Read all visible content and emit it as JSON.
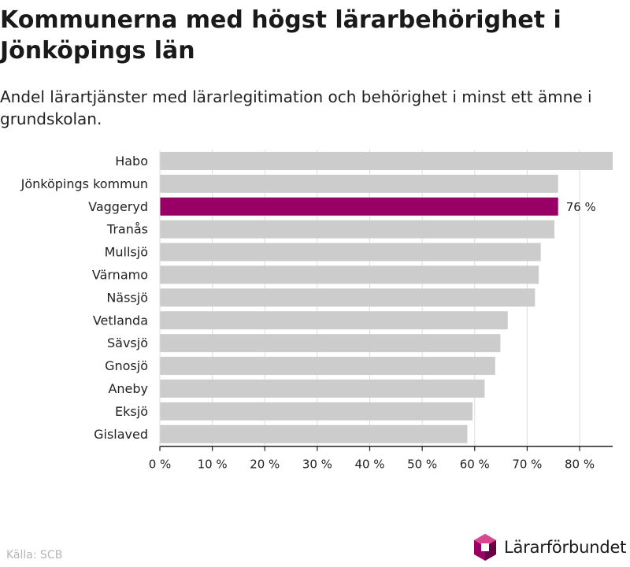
{
  "title": "Kommunerna med högst lärarbehörighet i Jönköpings län",
  "subtitle": "Andel lärartjänster med lärarlegitimation och behörighet i minst ett ämne i grundskolan.",
  "source": "Källa: SCB",
  "brand": {
    "name": "Lärarförbundet"
  },
  "colors": {
    "bar": "#cccccc",
    "highlight": "#990066",
    "grid": "#dddddd",
    "axis": "#222222"
  },
  "chart_data": {
    "type": "bar",
    "orientation": "horizontal",
    "categories": [
      "Habo",
      "Jönköpings kommun",
      "Vaggeryd",
      "Tranås",
      "Mullsjö",
      "Värnamo",
      "Nässjö",
      "Vetlanda",
      "Sävsjö",
      "Gnosjö",
      "Aneby",
      "Eksjö",
      "Gislaved"
    ],
    "values": [
      86.3,
      75.9,
      75.9,
      75.2,
      72.6,
      72.2,
      71.5,
      66.3,
      64.9,
      63.9,
      61.9,
      59.6,
      58.6
    ],
    "highlight": "Vaggeryd",
    "highlight_label": "76 %",
    "xlim": [
      0,
      86.3
    ],
    "xticks": [
      0,
      10,
      20,
      30,
      40,
      50,
      60,
      70,
      80
    ],
    "tick_labels": [
      "0 %",
      "10 %",
      "20 %",
      "30 %",
      "40 %",
      "50 %",
      "60 %",
      "70 %",
      "80 %"
    ],
    "grid": true
  }
}
